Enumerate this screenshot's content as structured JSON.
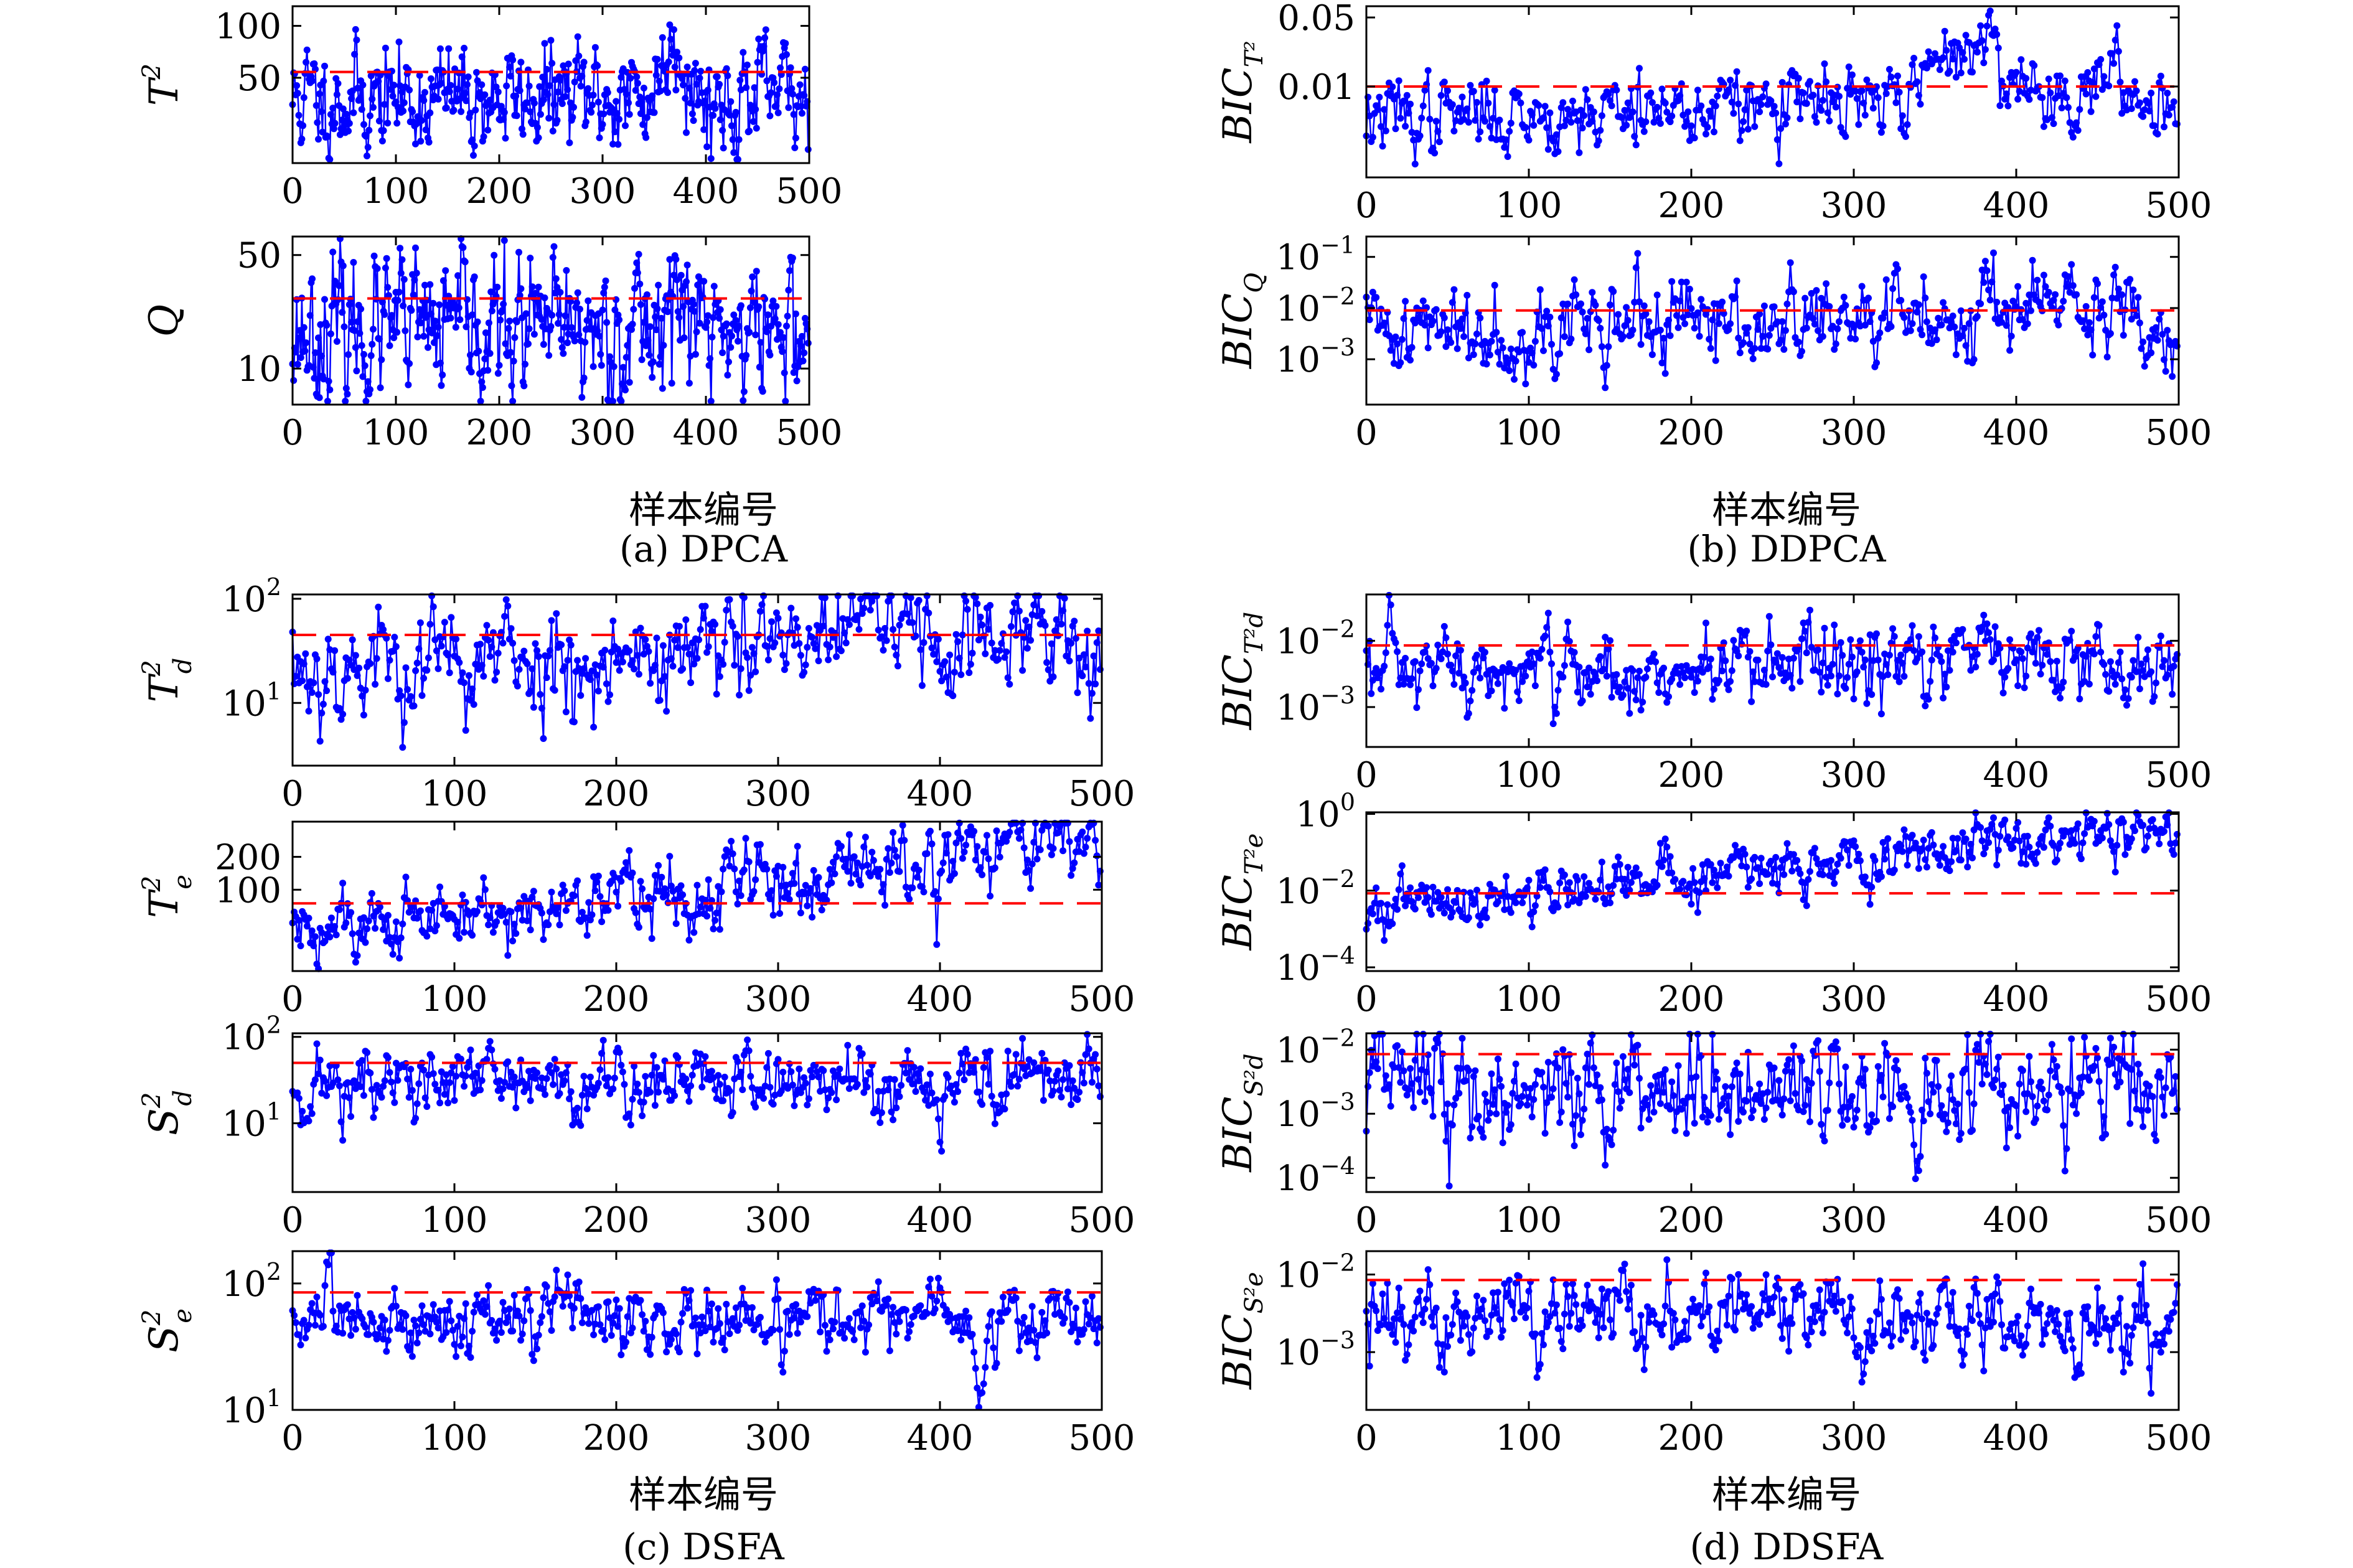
{
  "colors": {
    "series": "#0000ff",
    "threshold": "#ff0000",
    "axes": "#000000",
    "background": "#ffffff"
  },
  "captions": {
    "a": "(a) DPCA",
    "b": "(b) DDPCA",
    "c": "(c) DSFA",
    "d": "(d) DDSFA"
  },
  "xlabels": {
    "a": "样本编号",
    "b": "样本编号",
    "c": "样本编号",
    "d": "样本编号"
  },
  "chart_data": [
    {
      "id": "a1",
      "type": "line",
      "ylabel": "T",
      "ylabel_sup": "2",
      "ylabel_sub": "",
      "yscale": "log",
      "ylim": [
        16,
        130
      ],
      "xlim": [
        0,
        500
      ],
      "yticks": [
        {
          "v": 50,
          "label": "50"
        },
        {
          "v": 100,
          "label": "100"
        }
      ],
      "xticks": [
        {
          "v": 0,
          "label": "0"
        },
        {
          "v": 100,
          "label": "100"
        },
        {
          "v": 200,
          "label": "200"
        },
        {
          "v": 300,
          "label": "300"
        },
        {
          "v": 400,
          "label": "400"
        },
        {
          "v": 500,
          "label": "500"
        }
      ],
      "threshold": 54,
      "n": 500,
      "series": {
        "base": 38,
        "spread": 0.3,
        "seed": 11,
        "trend": 0,
        "bumps": [
          {
            "c": 370,
            "w": 14,
            "a": 0.85
          }
        ]
      }
    },
    {
      "id": "a2",
      "type": "line",
      "ylabel": "Q",
      "ylabel_sup": "",
      "ylabel_sub": "",
      "yscale": "log",
      "ylim": [
        6,
        65
      ],
      "xlim": [
        0,
        500
      ],
      "yticks": [
        {
          "v": 10,
          "label": "10"
        },
        {
          "v": 50,
          "label": "50"
        }
      ],
      "xticks": [
        {
          "v": 0,
          "label": "0"
        },
        {
          "v": 100,
          "label": "100"
        },
        {
          "v": 200,
          "label": "200"
        },
        {
          "v": 300,
          "label": "300"
        },
        {
          "v": 400,
          "label": "400"
        },
        {
          "v": 500,
          "label": "500"
        }
      ],
      "threshold": 27,
      "n": 500,
      "series": {
        "base": 17,
        "spread": 0.42,
        "seed": 23,
        "trend": 0,
        "bumps": [
          {
            "c": 370,
            "w": 18,
            "a": 0.45
          }
        ]
      }
    },
    {
      "id": "b1",
      "type": "line",
      "ylabel": "BIC",
      "ylabel_sup": "",
      "ylabel_sub": "T²",
      "yscale": "log",
      "ylim": [
        0.0012,
        0.065
      ],
      "xlim": [
        0,
        500
      ],
      "yticks": [
        {
          "v": 0.01,
          "label": "0.01"
        },
        {
          "v": 0.05,
          "label": "0.05"
        }
      ],
      "xticks": [
        {
          "v": 0,
          "label": "0"
        },
        {
          "v": 100,
          "label": "100"
        },
        {
          "v": 200,
          "label": "200"
        },
        {
          "v": 300,
          "label": "300"
        },
        {
          "v": 400,
          "label": "400"
        },
        {
          "v": 500,
          "label": "500"
        }
      ],
      "threshold": 0.01,
      "n": 500,
      "series": {
        "base": 0.0048,
        "spread": 0.38,
        "seed": 37,
        "trend": 0.5,
        "bumps": [
          {
            "c": 372,
            "w": 28,
            "a": 1.4
          },
          {
            "c": 450,
            "w": 14,
            "a": 0.45
          },
          {
            "c": 168,
            "w": 1.5,
            "a": 1.5
          }
        ]
      }
    },
    {
      "id": "b2",
      "type": "line",
      "ylabel": "BIC",
      "ylabel_sup": "",
      "ylabel_sub": "Q",
      "yscale": "log",
      "ylim": [
        0.00013,
        0.25
      ],
      "xlim": [
        0,
        500
      ],
      "yticks": [
        {
          "v": 0.001,
          "label": "10",
          "exp": "−3"
        },
        {
          "v": 0.01,
          "label": "10",
          "exp": "−2"
        },
        {
          "v": 0.1,
          "label": "10",
          "exp": "−1"
        }
      ],
      "xticks": [
        {
          "v": 0,
          "label": "0"
        },
        {
          "v": 100,
          "label": "100"
        },
        {
          "v": 200,
          "label": "200"
        },
        {
          "v": 300,
          "label": "300"
        },
        {
          "v": 400,
          "label": "400"
        },
        {
          "v": 500,
          "label": "500"
        }
      ],
      "threshold": 0.009,
      "n": 500,
      "series": {
        "base": 0.004,
        "spread": 0.85,
        "seed": 41,
        "trend": 0.4,
        "bumps": [
          {
            "c": 395,
            "w": 40,
            "a": 0.9
          },
          {
            "c": 166,
            "w": 1.5,
            "a": 2.4
          }
        ]
      }
    },
    {
      "id": "c1",
      "type": "line",
      "ylabel": "T",
      "ylabel_sup": "2",
      "ylabel_sub": "d",
      "yscale": "log",
      "ylim": [
        2.5,
        110
      ],
      "xlim": [
        0,
        500
      ],
      "yticks": [
        {
          "v": 10,
          "label": "10",
          "exp": "1"
        },
        {
          "v": 100,
          "label": "10",
          "exp": "2"
        }
      ],
      "xticks": [
        {
          "v": 0,
          "label": "0"
        },
        {
          "v": 100,
          "label": "100"
        },
        {
          "v": 200,
          "label": "200"
        },
        {
          "v": 300,
          "label": "300"
        },
        {
          "v": 400,
          "label": "400"
        },
        {
          "v": 500,
          "label": "500"
        }
      ],
      "threshold": 45,
      "n": 500,
      "series": {
        "base": 22,
        "spread": 0.55,
        "seed": 53,
        "trend": 0.6,
        "bumps": [
          {
            "c": 365,
            "w": 30,
            "a": 0.7
          }
        ]
      }
    },
    {
      "id": "c2",
      "type": "line",
      "ylabel": "T",
      "ylabel_sup": "2",
      "ylabel_sub": "e",
      "yscale": "log",
      "ylim": [
        18,
        420
      ],
      "xlim": [
        0,
        500
      ],
      "yticks": [
        {
          "v": 100,
          "label": "100"
        },
        {
          "v": 200,
          "label": "200"
        }
      ],
      "xticks": [
        {
          "v": 0,
          "label": "0"
        },
        {
          "v": 100,
          "label": "100"
        },
        {
          "v": 200,
          "label": "200"
        },
        {
          "v": 300,
          "label": "300"
        },
        {
          "v": 400,
          "label": "400"
        },
        {
          "v": 500,
          "label": "500"
        }
      ],
      "threshold": 75,
      "n": 500,
      "series": {
        "base": 40,
        "spread": 0.35,
        "seed": 61,
        "trend": 1.9,
        "bumps": []
      }
    },
    {
      "id": "c3",
      "type": "line",
      "ylabel": "S",
      "ylabel_sup": "2",
      "ylabel_sub": "d",
      "yscale": "log",
      "ylim": [
        1.6,
        110
      ],
      "xlim": [
        0,
        500
      ],
      "yticks": [
        {
          "v": 10,
          "label": "10",
          "exp": "1"
        },
        {
          "v": 100,
          "label": "10",
          "exp": "2"
        }
      ],
      "xticks": [
        {
          "v": 0,
          "label": "0"
        },
        {
          "v": 100,
          "label": "100"
        },
        {
          "v": 200,
          "label": "200"
        },
        {
          "v": 300,
          "label": "300"
        },
        {
          "v": 400,
          "label": "400"
        },
        {
          "v": 500,
          "label": "500"
        }
      ],
      "threshold": 50,
      "n": 500,
      "series": {
        "base": 27,
        "spread": 0.45,
        "seed": 71,
        "trend": 0.2,
        "bumps": []
      }
    },
    {
      "id": "c4",
      "type": "line",
      "ylabel": "S",
      "ylabel_sup": "2",
      "ylabel_sub": "e",
      "yscale": "log",
      "ylim": [
        10,
        180
      ],
      "xlim": [
        0,
        500
      ],
      "yticks": [
        {
          "v": 10,
          "label": "10",
          "exp": "1"
        },
        {
          "v": 100,
          "label": "10",
          "exp": "2"
        }
      ],
      "xticks": [
        {
          "v": 0,
          "label": "0"
        },
        {
          "v": 100,
          "label": "100"
        },
        {
          "v": 200,
          "label": "200"
        },
        {
          "v": 300,
          "label": "300"
        },
        {
          "v": 400,
          "label": "400"
        },
        {
          "v": 500,
          "label": "500"
        }
      ],
      "threshold": 85,
      "n": 500,
      "series": {
        "base": 52,
        "spread": 0.28,
        "seed": 83,
        "trend": 0,
        "bumps": [
          {
            "c": 425,
            "w": 4,
            "a": -1.2
          }
        ]
      }
    },
    {
      "id": "d1",
      "type": "line",
      "ylabel": "BIC",
      "ylabel_sup": "",
      "ylabel_sub": "T²d",
      "yscale": "log",
      "ylim": [
        0.00025,
        0.05
      ],
      "xlim": [
        0,
        500
      ],
      "yticks": [
        {
          "v": 0.001,
          "label": "10",
          "exp": "−3"
        },
        {
          "v": 0.01,
          "label": "10",
          "exp": "−2"
        }
      ],
      "xticks": [
        {
          "v": 0,
          "label": "0"
        },
        {
          "v": 100,
          "label": "100"
        },
        {
          "v": 200,
          "label": "200"
        },
        {
          "v": 300,
          "label": "300"
        },
        {
          "v": 400,
          "label": "400"
        },
        {
          "v": 500,
          "label": "500"
        }
      ],
      "threshold": 0.0085,
      "n": 500,
      "series": {
        "base": 0.0028,
        "spread": 0.65,
        "seed": 97,
        "trend": 0.5,
        "bumps": [
          {
            "c": 372,
            "w": 18,
            "a": 1.3
          }
        ]
      }
    },
    {
      "id": "d2",
      "type": "line",
      "ylabel": "BIC",
      "ylabel_sup": "",
      "ylabel_sub": "T²e",
      "yscale": "log",
      "ylim": [
        8e-05,
        1.1
      ],
      "xlim": [
        0,
        500
      ],
      "yticks": [
        {
          "v": 0.0001,
          "label": "10",
          "exp": "−4"
        },
        {
          "v": 0.01,
          "label": "10",
          "exp": "−2"
        },
        {
          "v": 1,
          "label": "10",
          "exp": "0"
        }
      ],
      "xticks": [
        {
          "v": 0,
          "label": "0"
        },
        {
          "v": 100,
          "label": "100"
        },
        {
          "v": 200,
          "label": "200"
        },
        {
          "v": 300,
          "label": "300"
        },
        {
          "v": 400,
          "label": "400"
        },
        {
          "v": 500,
          "label": "500"
        }
      ],
      "threshold": 0.0085,
      "n": 500,
      "series": {
        "base": 0.0028,
        "spread": 0.7,
        "seed": 101,
        "trend": 5.3,
        "bumps": []
      }
    },
    {
      "id": "d3",
      "type": "line",
      "ylabel": "BIC",
      "ylabel_sup": "",
      "ylabel_sub": "S²d",
      "yscale": "log",
      "ylim": [
        6e-05,
        0.018
      ],
      "xlim": [
        0,
        500
      ],
      "yticks": [
        {
          "v": 0.0001,
          "label": "10",
          "exp": "−4"
        },
        {
          "v": 0.001,
          "label": "10",
          "exp": "−3"
        },
        {
          "v": 0.01,
          "label": "10",
          "exp": "−2"
        }
      ],
      "xticks": [
        {
          "v": 0,
          "label": "0"
        },
        {
          "v": 100,
          "label": "100"
        },
        {
          "v": 200,
          "label": "200"
        },
        {
          "v": 300,
          "label": "300"
        },
        {
          "v": 400,
          "label": "400"
        },
        {
          "v": 500,
          "label": "500"
        }
      ],
      "threshold": 0.0085,
      "n": 500,
      "series": {
        "base": 0.0022,
        "spread": 0.9,
        "seed": 113,
        "trend": 0.2,
        "bumps": []
      }
    },
    {
      "id": "d4",
      "type": "line",
      "ylabel": "BIC",
      "ylabel_sup": "",
      "ylabel_sub": "S²e",
      "yscale": "log",
      "ylim": [
        0.00018,
        0.02
      ],
      "xlim": [
        0,
        500
      ],
      "yticks": [
        {
          "v": 0.001,
          "label": "10",
          "exp": "−3"
        },
        {
          "v": 0.01,
          "label": "10",
          "exp": "−2"
        }
      ],
      "xticks": [
        {
          "v": 0,
          "label": "0"
        },
        {
          "v": 100,
          "label": "100"
        },
        {
          "v": 200,
          "label": "200"
        },
        {
          "v": 300,
          "label": "300"
        },
        {
          "v": 400,
          "label": "400"
        },
        {
          "v": 500,
          "label": "500"
        }
      ],
      "threshold": 0.0085,
      "n": 500,
      "series": {
        "base": 0.0026,
        "spread": 0.55,
        "seed": 127,
        "trend": 0,
        "bumps": []
      }
    }
  ]
}
